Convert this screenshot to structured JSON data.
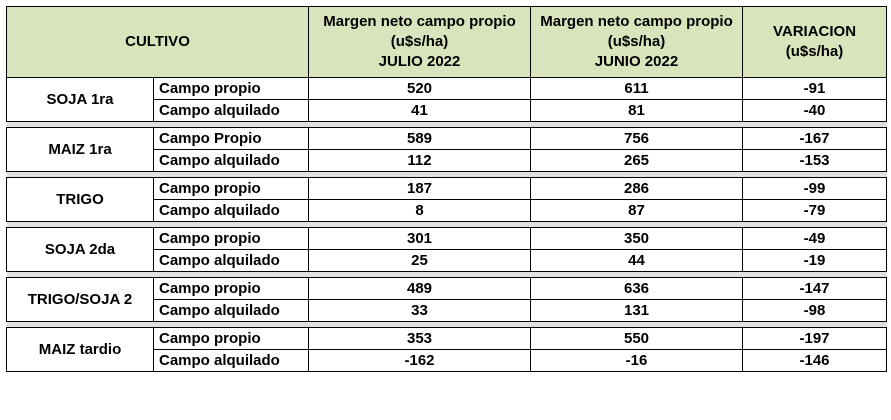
{
  "header": {
    "cultivo": "CULTIVO",
    "col1": [
      "Margen neto campo propio",
      "(u$s/ha)",
      "JULIO 2022"
    ],
    "col2": [
      "Margen neto campo propio",
      "(u$s/ha)",
      "JUNIO 2022"
    ],
    "col3": [
      "VARIACION",
      "(u$s/ha)"
    ]
  },
  "rows": [
    {
      "crop": "SOJA 1ra",
      "lines": [
        {
          "type": "Campo propio",
          "julio": "520",
          "junio": "611",
          "variacion": "-91"
        },
        {
          "type": "Campo alquilado",
          "julio": "41",
          "junio": "81",
          "variacion": "-40"
        }
      ]
    },
    {
      "crop": "MAIZ 1ra",
      "lines": [
        {
          "type": "Campo Propio",
          "julio": "589",
          "junio": "756",
          "variacion": "-167"
        },
        {
          "type": "Campo alquilado",
          "julio": "112",
          "junio": "265",
          "variacion": "-153"
        }
      ]
    },
    {
      "crop": "TRIGO",
      "lines": [
        {
          "type": "Campo propio",
          "julio": "187",
          "junio": "286",
          "variacion": "-99"
        },
        {
          "type": "Campo alquilado",
          "julio": "8",
          "junio": "87",
          "variacion": "-79"
        }
      ]
    },
    {
      "crop": "SOJA 2da",
      "lines": [
        {
          "type": "Campo propio",
          "julio": "301",
          "junio": "350",
          "variacion": "-49"
        },
        {
          "type": "Campo alquilado",
          "julio": "25",
          "junio": "44",
          "variacion": "-19"
        }
      ]
    },
    {
      "crop": "TRIGO/SOJA 2",
      "lines": [
        {
          "type": "Campo propio",
          "julio": "489",
          "junio": "636",
          "variacion": "-147"
        },
        {
          "type": "Campo alquilado",
          "julio": "33",
          "junio": "131",
          "variacion": "-98"
        }
      ]
    },
    {
      "crop": "MAIZ tardio",
      "lines": [
        {
          "type": "Campo propio",
          "julio": "353",
          "junio": "550",
          "variacion": "-197"
        },
        {
          "type": "Campo alquilado",
          "julio": "-162",
          "junio": "-16",
          "variacion": "-146"
        }
      ]
    }
  ],
  "colors": {
    "header_bg": "#d8e4bc",
    "separator_bg": "#e0e0e0"
  }
}
